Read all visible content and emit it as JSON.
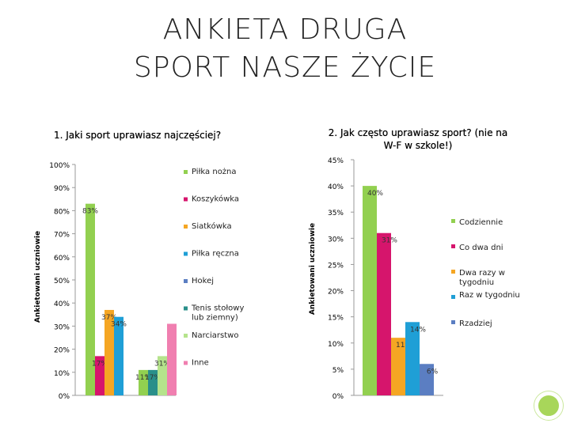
{
  "slide": {
    "title_line1": "Ankieta druga",
    "title_line2": "Sport nasze życie"
  },
  "chart_data": [
    {
      "type": "bar",
      "title": "1. Jaki sport uprawiasz najczęściej?",
      "ylabel": "Ankietowani uczniowie",
      "ylim": [
        0,
        100
      ],
      "yticks": [
        "0%",
        "10%",
        "20%",
        "30%",
        "40%",
        "50%",
        "60%",
        "70%",
        "80%",
        "90%",
        "100%"
      ],
      "legend_position": "right",
      "series": [
        {
          "name": "Piłka nożna",
          "color": "#92d050",
          "values": [
            83,
            11
          ]
        },
        {
          "name": "Koszykówka",
          "color": "#d6156c",
          "values": [
            17,
            null
          ]
        },
        {
          "name": "Siatkówka",
          "color": "#f5a623",
          "values": [
            37,
            null
          ]
        },
        {
          "name": "Piłka ręczna",
          "color": "#1f9fd6",
          "values": [
            34,
            null
          ]
        },
        {
          "name": "Hokej",
          "color": "#5b7ec2",
          "values": [
            null,
            null
          ]
        },
        {
          "name": "Tenis stołowy lub ziemny)",
          "color": "#2a8f8a",
          "values": [
            null,
            11
          ]
        },
        {
          "name": "Narciarstwo",
          "color": "#b5e38c",
          "values": [
            null,
            17
          ]
        },
        {
          "name": "Inne",
          "color": "#f07fb0",
          "values": [
            null,
            31
          ]
        }
      ],
      "data_labels": [
        "83%",
        "17%",
        "37%",
        "34%",
        "11%",
        "17%",
        "31%"
      ]
    },
    {
      "type": "bar",
      "title": "2. Jak często uprawiasz sport? (nie na W-F w szkole!)",
      "ylabel": "Ankietowani uczniowie",
      "ylim": [
        0,
        45
      ],
      "yticks": [
        "0%",
        "5%",
        "10%",
        "15%",
        "20%",
        "25%",
        "30%",
        "35%",
        "40%",
        "45%"
      ],
      "legend_position": "right",
      "series": [
        {
          "name": "Codziennie",
          "color": "#92d050",
          "value": 40,
          "label": "40%"
        },
        {
          "name": "Co dwa dni",
          "color": "#d6156c",
          "value": 31,
          "label": "31%"
        },
        {
          "name": "Dwa razy w tygodniu",
          "color": "#f5a623",
          "value": 11,
          "label": "11%"
        },
        {
          "name": "Raz w tygodniu",
          "color": "#1f9fd6",
          "value": 14,
          "label": "14%"
        },
        {
          "name": "Rzadziej",
          "color": "#5b7ec2",
          "value": 6,
          "label": "6%"
        }
      ]
    }
  ]
}
